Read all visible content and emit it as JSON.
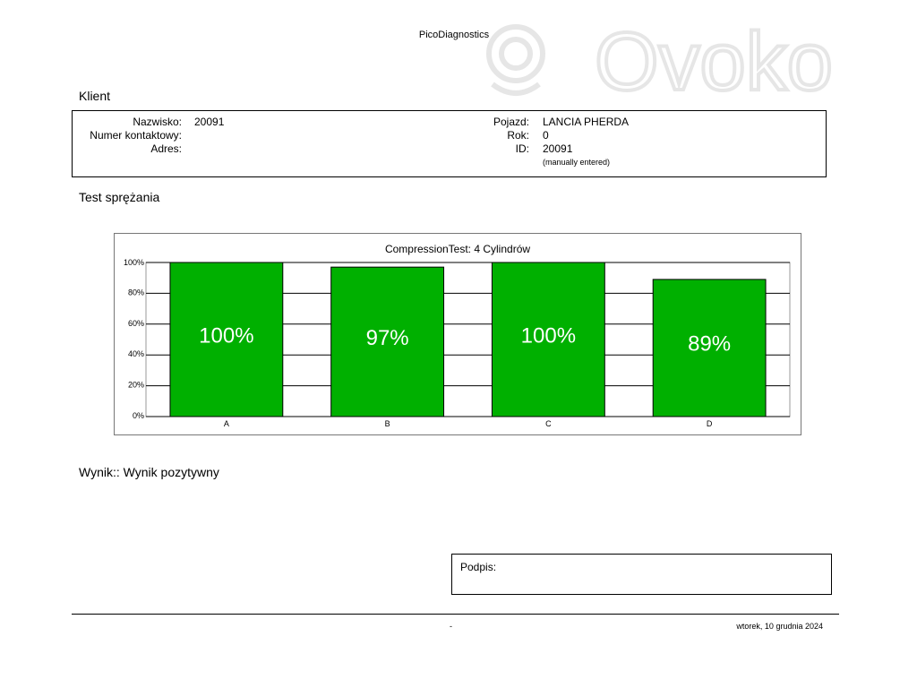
{
  "header": {
    "app_title": "PicoDiagnostics",
    "watermark_text": "Ovoko"
  },
  "client": {
    "heading": "Klient",
    "surname_label": "Nazwisko:",
    "surname_value": "20091",
    "contact_label": "Numer kontaktowy:",
    "contact_value": "",
    "address_label": "Adres:",
    "address_value": "",
    "vehicle_label": "Pojazd:",
    "vehicle_value": "LANCIA PHERDA",
    "year_label": "Rok:",
    "year_value": "0",
    "id_label": "ID:",
    "id_value": "20091",
    "id_note": "(manually entered)"
  },
  "test": {
    "heading": "Test sprężania"
  },
  "chart_data": {
    "type": "bar",
    "title": "CompressionTest: 4 Cylindrów",
    "categories": [
      "A",
      "B",
      "C",
      "D"
    ],
    "values": [
      100,
      97,
      100,
      89
    ],
    "data_labels": [
      "100%",
      "97%",
      "100%",
      "89%"
    ],
    "ylim": [
      0,
      100
    ],
    "y_ticks": [
      0,
      20,
      40,
      60,
      80,
      100
    ],
    "y_tick_labels": [
      "0%",
      "20%",
      "40%",
      "60%",
      "80%",
      "100%"
    ],
    "xlabel": "",
    "ylabel": "",
    "grid": true,
    "bar_color": "#00b000",
    "label_color": "#ffffff"
  },
  "result": {
    "text": "Wynik:: Wynik pozytywny"
  },
  "signature": {
    "label": "Podpis:"
  },
  "footer": {
    "center_text": "-",
    "date": "wtorek, 10 grudnia 2024"
  }
}
